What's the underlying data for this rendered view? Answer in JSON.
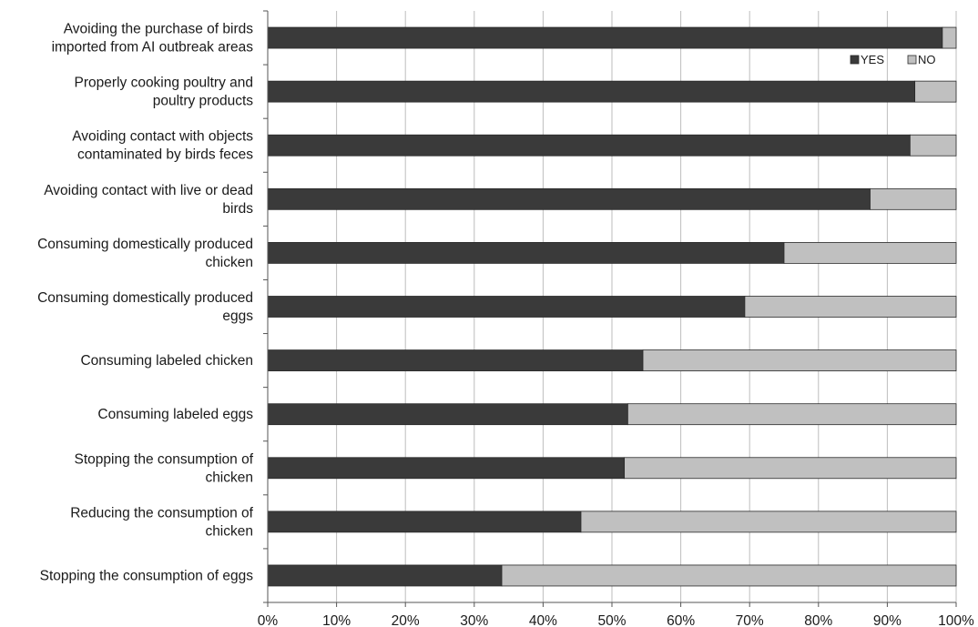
{
  "chart_data": {
    "type": "bar",
    "orientation": "horizontal",
    "stacked": true,
    "normalized_percent": true,
    "categories": [
      [
        "Avoiding the purchase of birds",
        "imported from AI outbreak areas"
      ],
      [
        "Properly cooking poultry and",
        "poultry products"
      ],
      [
        "Avoiding contact with objects",
        "contaminated by birds feces"
      ],
      [
        "Avoiding contact with live or dead",
        "birds"
      ],
      [
        "Consuming domestically produced",
        "chicken"
      ],
      [
        "Consuming domestically produced",
        "eggs"
      ],
      [
        "Consuming labeled chicken"
      ],
      [
        "Consuming labeled eggs"
      ],
      [
        "Stopping the consumption of",
        "chicken"
      ],
      [
        "Reducing the consumption of",
        "chicken"
      ],
      [
        "Stopping the consumption of eggs"
      ]
    ],
    "series": [
      {
        "name": "YES",
        "color": "#3a3a3a",
        "values": [
          98,
          94,
          93.3,
          87.5,
          75,
          69.3,
          54.5,
          52.3,
          51.8,
          45.5,
          34
        ]
      },
      {
        "name": "NO",
        "color": "#c0c0c0",
        "values": [
          2,
          6,
          6.7,
          12.5,
          25,
          30.7,
          45.5,
          47.7,
          48.2,
          54.5,
          66
        ]
      }
    ],
    "x_ticks": [
      "0%",
      "10%",
      "20%",
      "30%",
      "40%",
      "50%",
      "60%",
      "70%",
      "80%",
      "90%",
      "100%"
    ],
    "xlim": [
      0,
      100
    ],
    "grid": true,
    "legend_position": "top-right"
  }
}
